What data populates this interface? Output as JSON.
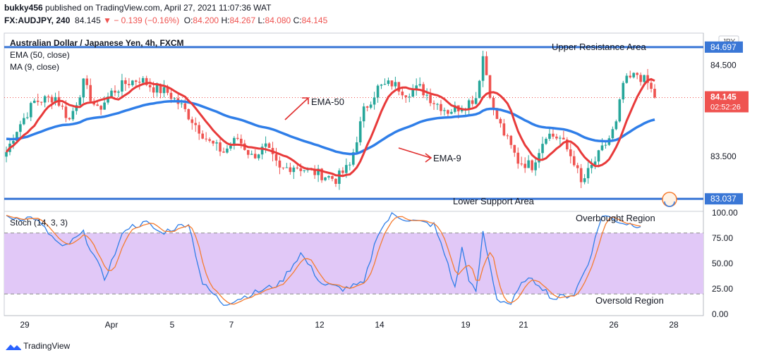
{
  "header": {
    "publisher": "bukky456",
    "published_text": "published on TradingView.com, April 27, 2021 11:07:36 WAT",
    "symbol": "FX:AUDJPY, 240",
    "last": "84.145",
    "change": "− 0.139 (−0.16%)",
    "o_label": "O:",
    "o": "84.200",
    "h_label": "H:",
    "h": "84.267",
    "l_label": "L:",
    "l": "84.080",
    "c_label": "C:",
    "c": "84.145"
  },
  "legend": {
    "instrument": "Australian Dollar / Japanese Yen, 4h, FXCM",
    "ema": "EMA (50, close)",
    "ma": "MA (9, close)",
    "stoch": "Stoch (14, 3, 3)"
  },
  "price_scale": {
    "currency": "JPY",
    "ticks": [
      "84.500",
      "83.500"
    ],
    "resistance_label": "84.697",
    "support_label": "83.037",
    "current_label": "84.145",
    "countdown": "02:52:26"
  },
  "stoch_scale": {
    "ticks": [
      "100.00",
      "75.00",
      "50.00",
      "25.00",
      "0.00"
    ]
  },
  "annotations": {
    "upper": "Upper Resistance Area",
    "lower": "Lower Support Area",
    "ema50": "EMA-50",
    "ema9": "EMA-9",
    "overbought": "Overbought Region",
    "oversold": "Oversold Region"
  },
  "footer": {
    "brand": "TradingView"
  },
  "colors": {
    "up": "#26a69a",
    "down": "#ef5350",
    "ema": "#2f7ee8",
    "ma": "#e83a3a",
    "line": "#3a77d6",
    "stoch_k": "#2f7ee8",
    "stoch_d": "#f57c30",
    "band": "#e1c8f7"
  },
  "chart_data": {
    "type": "candlestick",
    "x_ticks": [
      "29",
      "Apr",
      "5",
      "7",
      "12",
      "14",
      "19",
      "21",
      "26",
      "28"
    ],
    "ylim": [
      82.9,
      84.85
    ],
    "resistance": 84.697,
    "support": 83.037,
    "last": 84.145,
    "anchors": [
      [
        0,
        83.55
      ],
      [
        3,
        83.8
      ],
      [
        8,
        84.1
      ],
      [
        14,
        84.15
      ],
      [
        18,
        83.9
      ],
      [
        22,
        84.3
      ],
      [
        26,
        84.0
      ],
      [
        30,
        84.2
      ],
      [
        34,
        84.3
      ],
      [
        38,
        84.35
      ],
      [
        42,
        84.25
      ],
      [
        46,
        84.2
      ],
      [
        50,
        84.05
      ],
      [
        54,
        83.85
      ],
      [
        58,
        83.65
      ],
      [
        62,
        83.55
      ],
      [
        66,
        83.7
      ],
      [
        70,
        83.5
      ],
      [
        74,
        83.6
      ],
      [
        78,
        83.35
      ],
      [
        82,
        83.4
      ],
      [
        86,
        83.35
      ],
      [
        90,
        83.3
      ],
      [
        94,
        83.25
      ],
      [
        98,
        83.4
      ],
      [
        102,
        84.0
      ],
      [
        106,
        84.25
      ],
      [
        110,
        84.3
      ],
      [
        114,
        84.2
      ],
      [
        118,
        84.25
      ],
      [
        122,
        84.1
      ],
      [
        126,
        84.0
      ],
      [
        130,
        84.05
      ],
      [
        134,
        84.15
      ],
      [
        136,
        84.6
      ],
      [
        139,
        84.0
      ],
      [
        142,
        83.75
      ],
      [
        146,
        83.45
      ],
      [
        150,
        83.4
      ],
      [
        154,
        83.75
      ],
      [
        158,
        83.7
      ],
      [
        162,
        83.45
      ],
      [
        164,
        83.2
      ],
      [
        168,
        83.45
      ],
      [
        172,
        83.7
      ],
      [
        174,
        83.85
      ],
      [
        176,
        84.3
      ],
      [
        180,
        84.4
      ],
      [
        183,
        84.3
      ],
      [
        185,
        84.145
      ]
    ],
    "stoch_k_anchors": [
      [
        0,
        95
      ],
      [
        8,
        95
      ],
      [
        16,
        65
      ],
      [
        22,
        80
      ],
      [
        28,
        35
      ],
      [
        34,
        85
      ],
      [
        40,
        90
      ],
      [
        44,
        80
      ],
      [
        52,
        90
      ],
      [
        56,
        30
      ],
      [
        62,
        10
      ],
      [
        70,
        20
      ],
      [
        78,
        30
      ],
      [
        84,
        60
      ],
      [
        90,
        30
      ],
      [
        96,
        25
      ],
      [
        102,
        30
      ],
      [
        106,
        80
      ],
      [
        110,
        98
      ],
      [
        116,
        92
      ],
      [
        122,
        88
      ],
      [
        126,
        50
      ],
      [
        128,
        25
      ],
      [
        130,
        65
      ],
      [
        132,
        35
      ],
      [
        134,
        20
      ],
      [
        136,
        80
      ],
      [
        140,
        15
      ],
      [
        144,
        10
      ],
      [
        148,
        35
      ],
      [
        152,
        30
      ],
      [
        156,
        15
      ],
      [
        162,
        20
      ],
      [
        166,
        50
      ],
      [
        170,
        98
      ],
      [
        176,
        90
      ],
      [
        180,
        88
      ]
    ],
    "ylim_stoch": [
      0,
      100
    ],
    "overbought": 80,
    "oversold": 20
  }
}
